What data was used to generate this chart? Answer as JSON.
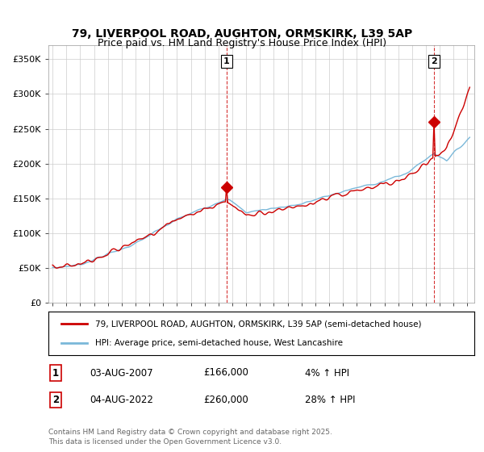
{
  "title1": "79, LIVERPOOL ROAD, AUGHTON, ORMSKIRK, L39 5AP",
  "title2": "Price paid vs. HM Land Registry's House Price Index (HPI)",
  "legend_line1": "79, LIVERPOOL ROAD, AUGHTON, ORMSKIRK, L39 5AP (semi-detached house)",
  "legend_line2": "HPI: Average price, semi-detached house, West Lancashire",
  "annotation1_label": "1",
  "annotation1_date": "03-AUG-2007",
  "annotation1_price": "£166,000",
  "annotation1_hpi": "4% ↑ HPI",
  "annotation2_label": "2",
  "annotation2_date": "04-AUG-2022",
  "annotation2_price": "£260,000",
  "annotation2_hpi": "28% ↑ HPI",
  "footnote": "Contains HM Land Registry data © Crown copyright and database right 2025.\nThis data is licensed under the Open Government Licence v3.0.",
  "hpi_color": "#7ab8d9",
  "price_color": "#cc0000",
  "annotation_color": "#cc0000",
  "vline_color": "#cc0000",
  "ylim": [
    0,
    370000
  ],
  "yticks": [
    0,
    50000,
    100000,
    150000,
    200000,
    250000,
    300000,
    350000
  ],
  "ytick_labels": [
    "£0",
    "£50K",
    "£100K",
    "£150K",
    "£200K",
    "£250K",
    "£300K",
    "£350K"
  ],
  "background_color": "#ffffff",
  "grid_color": "#cccccc",
  "sale1_t": 2007.583,
  "sale1_p": 166000,
  "sale2_t": 2022.583,
  "sale2_p": 260000
}
